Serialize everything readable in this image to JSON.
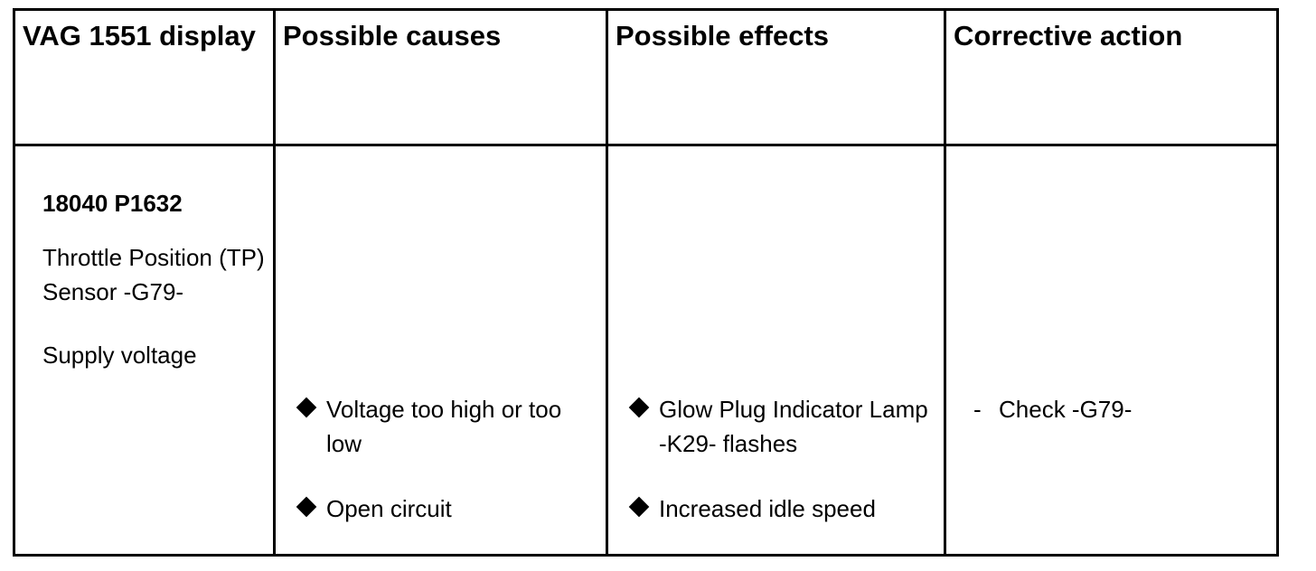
{
  "headers": {
    "display": "VAG 1551 display",
    "causes": "Possible causes",
    "effects": "Possible effects",
    "action": "Corrective action"
  },
  "row": {
    "code": "18040 P1632",
    "component": "Throttle Position (TP) Sensor -G79-",
    "fault": "Supply voltage",
    "causes": [
      "Voltage too high or too low",
      "Open circuit"
    ],
    "effects": [
      "Glow Plug Indicator Lamp -K29- flashes",
      "Increased idle speed"
    ],
    "actions": [
      {
        "marker": "-",
        "text": "Check -G79-"
      }
    ]
  },
  "icons": {
    "bullet": "diamond-bullet-icon"
  },
  "colors": {
    "text": "#000000",
    "border": "#000000",
    "background": "#ffffff"
  }
}
